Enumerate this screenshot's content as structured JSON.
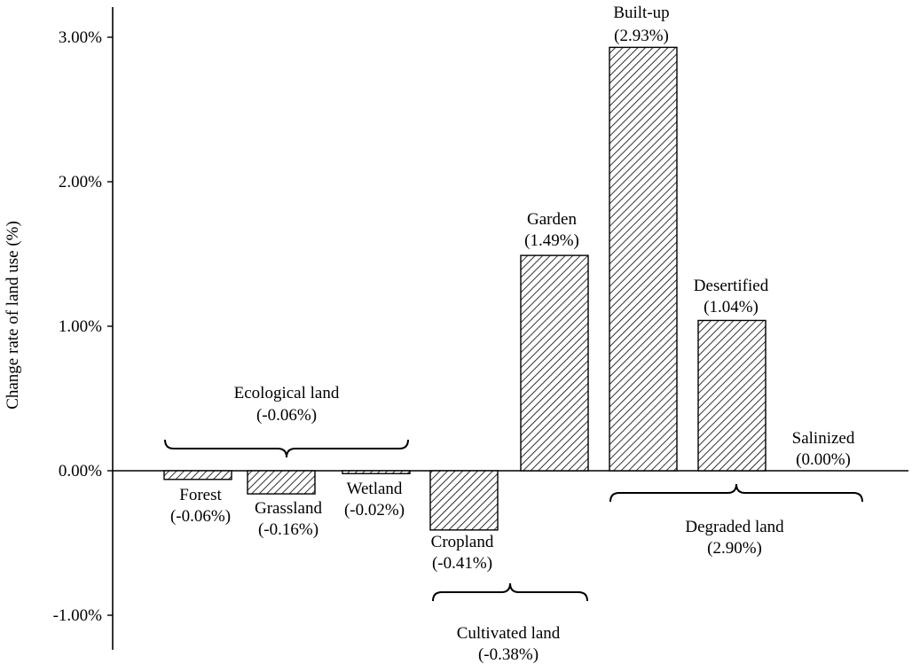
{
  "chart_data": {
    "type": "bar",
    "categories": [
      "Forest",
      "Grassland",
      "Wetland",
      "Cropland",
      "Garden",
      "Built-up",
      "Desertified",
      "Salinized"
    ],
    "values": [
      -0.06,
      -0.16,
      -0.02,
      -0.41,
      1.49,
      2.93,
      1.04,
      0.0
    ],
    "value_labels": [
      "(-0.06%)",
      "(-0.16%)",
      "(-0.02%)",
      "(-0.41%)",
      "(1.49%)",
      "(2.93%)",
      "(1.04%)",
      "(0.00%)"
    ],
    "ylabel": "Change rate of land use (%)",
    "ylim": [
      -1.2,
      3.2
    ],
    "yticks": [
      -1,
      0,
      1,
      2,
      3
    ],
    "ytick_labels": [
      "-1.00%",
      "0.00%",
      "1.00%",
      "2.00%",
      "3.00%"
    ],
    "bar_fill": "hatched",
    "groups": [
      {
        "name": "Ecological land",
        "value_label": "(-0.06%)",
        "members": [
          "Forest",
          "Grassland",
          "Wetland"
        ],
        "brace": "above"
      },
      {
        "name": "Cultivated land",
        "value_label": "(-0.38%)",
        "members": [
          "Cropland",
          "Garden"
        ],
        "brace": "below"
      },
      {
        "name": "Degraded land",
        "value_label": "(2.90%)",
        "members": [
          "Built-up",
          "Desertified",
          "Salinized"
        ],
        "brace": "below"
      }
    ]
  }
}
